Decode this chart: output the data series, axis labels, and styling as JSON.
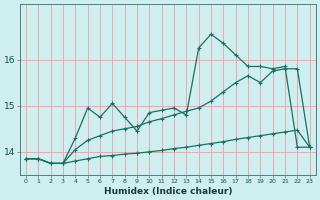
{
  "xlabel": "Humidex (Indice chaleur)",
  "bg_color": "#ceeef0",
  "grid_color": "#e8a0a0",
  "line_color": "#1a7060",
  "xlim": [
    -0.5,
    23.5
  ],
  "ylim": [
    13.5,
    17.2
  ],
  "yticks": [
    14,
    15,
    16
  ],
  "xticks": [
    0,
    1,
    2,
    3,
    4,
    5,
    6,
    7,
    8,
    9,
    10,
    11,
    12,
    13,
    14,
    15,
    16,
    17,
    18,
    19,
    20,
    21,
    22,
    23
  ],
  "line1_x": [
    0,
    1,
    2,
    3,
    4,
    5,
    6,
    7,
    8,
    9,
    10,
    11,
    12,
    13,
    14,
    15,
    16,
    17,
    18,
    19,
    20,
    21,
    22,
    23
  ],
  "line1_y": [
    13.85,
    13.85,
    13.75,
    13.75,
    13.8,
    13.85,
    13.9,
    13.92,
    13.95,
    13.97,
    14.0,
    14.03,
    14.07,
    14.1,
    14.14,
    14.18,
    14.22,
    14.27,
    14.31,
    14.35,
    14.39,
    14.43,
    14.47,
    14.1
  ],
  "line2_x": [
    0,
    1,
    2,
    3,
    4,
    5,
    6,
    7,
    8,
    9,
    10,
    11,
    12,
    13,
    14,
    15,
    16,
    17,
    18,
    19,
    20,
    21,
    22,
    23
  ],
  "line2_y": [
    13.85,
    13.85,
    13.75,
    13.75,
    14.3,
    14.95,
    14.75,
    15.05,
    14.75,
    14.45,
    14.85,
    14.9,
    14.95,
    14.8,
    16.25,
    16.55,
    16.35,
    16.1,
    15.85,
    15.85,
    15.8,
    15.85,
    14.1,
    14.1
  ],
  "line3_x": [
    0,
    1,
    2,
    3,
    4,
    5,
    6,
    7,
    8,
    9,
    10,
    11,
    12,
    13,
    14,
    15,
    16,
    17,
    18,
    19,
    20,
    21,
    22,
    23
  ],
  "line3_y": [
    13.85,
    13.85,
    13.75,
    13.75,
    14.05,
    14.25,
    14.35,
    14.45,
    14.5,
    14.55,
    14.65,
    14.72,
    14.8,
    14.88,
    14.95,
    15.1,
    15.3,
    15.5,
    15.65,
    15.5,
    15.75,
    15.8,
    15.8,
    14.1
  ]
}
